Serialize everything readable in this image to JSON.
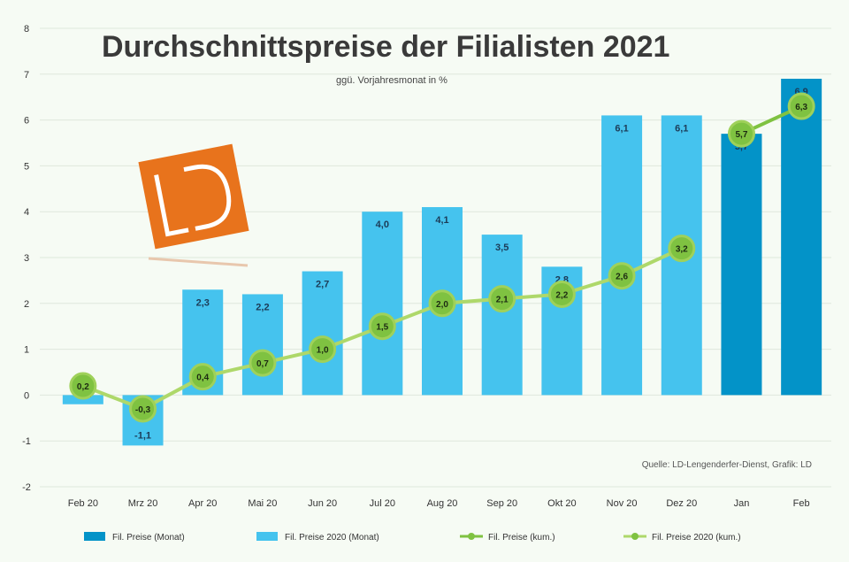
{
  "chart_data": {
    "type": "bar",
    "title": "Durchschnittspreise der Filialisten 2021",
    "subtitle": "ggü. Vorjahresmonat in %",
    "source": "Quelle: LD-Lengenderfer-Dienst, Grafik: LD",
    "ylim": [
      -2,
      8
    ],
    "yticks": [
      "-2",
      "-1",
      "0",
      "1",
      "2",
      "3",
      "4",
      "5",
      "6",
      "7",
      "8"
    ],
    "categories": [
      "Feb 20",
      "Mrz 20",
      "Apr 20",
      "Mai 20",
      "Jun 20",
      "Jul 20",
      "Aug 20",
      "Sep 20",
      "Okt 20",
      "Nov 20",
      "Dez 20",
      "Jan",
      "Feb"
    ],
    "bars": [
      {
        "value": -0.2,
        "label": "-0,2",
        "series": 1
      },
      {
        "value": -1.1,
        "label": "-1,1",
        "series": 1
      },
      {
        "value": 2.3,
        "label": "2,3",
        "series": 1
      },
      {
        "value": 2.2,
        "label": "2,2",
        "series": 1
      },
      {
        "value": 2.7,
        "label": "2,7",
        "series": 1
      },
      {
        "value": 4.0,
        "label": "4,0",
        "series": 1
      },
      {
        "value": 4.1,
        "label": "4,1",
        "series": 1
      },
      {
        "value": 3.5,
        "label": "3,5",
        "series": 1
      },
      {
        "value": 2.8,
        "label": "2,8",
        "series": 1
      },
      {
        "value": 6.1,
        "label": "6,1",
        "series": 1
      },
      {
        "value": 6.1,
        "label": "6,1",
        "series": 1
      },
      {
        "value": 5.7,
        "label": "5,7",
        "series": 0
      },
      {
        "value": 6.9,
        "label": "6,9",
        "series": 0
      }
    ],
    "line": [
      {
        "value": 0.2,
        "label": "0,2"
      },
      {
        "value": -0.3,
        "label": "-0,3"
      },
      {
        "value": 0.4,
        "label": "0,4"
      },
      {
        "value": 0.7,
        "label": "0,7"
      },
      {
        "value": 1.0,
        "label": "1,0"
      },
      {
        "value": 1.5,
        "label": "1,5"
      },
      {
        "value": 2.0,
        "label": "2,0"
      },
      {
        "value": 2.1,
        "label": "2,1"
      },
      {
        "value": 2.2,
        "label": "2,2"
      },
      {
        "value": 2.6,
        "label": "2,6"
      },
      {
        "value": 3.2,
        "label": "3,2"
      },
      {
        "value": 5.7,
        "label": "5,7"
      },
      {
        "value": 6.3,
        "label": "6,3"
      }
    ],
    "legend": [
      {
        "name": "Fil. Preise (Monat)",
        "kind": "bar",
        "color": "#0393c8"
      },
      {
        "name": "Fil. Preise 2020 (Monat)",
        "kind": "bar",
        "color": "#45c3ee"
      },
      {
        "name": "Fil. Preise (kum.)",
        "kind": "line",
        "color": "#7fc241"
      },
      {
        "name": "Fil. Preise 2020 (kum.)",
        "kind": "line",
        "color": "#aed86a"
      }
    ],
    "colors": {
      "bar_current": "#0393c8",
      "bar_prior": "#45c3ee",
      "line": "#aed86a",
      "marker": "#7fc241",
      "logo": "#e8731c"
    },
    "grid": true,
    "legend_position": "bottom"
  },
  "logo": {
    "text": "LD"
  }
}
